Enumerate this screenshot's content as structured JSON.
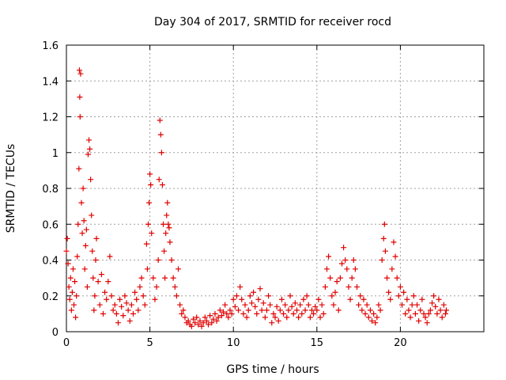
{
  "chart_data": {
    "type": "scatter",
    "title": "Day 304 of 2017, SRMTID for receiver rocd",
    "xlabel": "GPS time / hours",
    "ylabel": "SRMTID / TECUs",
    "xlim": [
      0,
      25
    ],
    "ylim": [
      0,
      1.6
    ],
    "x_ticks": [
      0,
      5,
      10,
      15,
      20
    ],
    "x_tick_labels": [
      "0",
      "5",
      "10",
      "15",
      "20"
    ],
    "y_ticks": [
      0,
      0.2,
      0.4,
      0.6,
      0.8,
      1,
      1.2,
      1.4,
      1.6
    ],
    "y_tick_labels": [
      "0",
      "0.2",
      "0.4",
      "0.6",
      "0.8",
      "1",
      "1.2",
      "1.4",
      "1.6"
    ],
    "grid": true,
    "marker": "plus",
    "color": "#e00000",
    "series": [
      {
        "name": "SRMTID",
        "points": [
          [
            0.0,
            0.45
          ],
          [
            0.05,
            0.52
          ],
          [
            0.1,
            0.38
          ],
          [
            0.15,
            0.25
          ],
          [
            0.2,
            0.18
          ],
          [
            0.25,
            0.3
          ],
          [
            0.3,
            0.12
          ],
          [
            0.35,
            0.22
          ],
          [
            0.4,
            0.35
          ],
          [
            0.45,
            0.15
          ],
          [
            0.5,
            0.28
          ],
          [
            0.55,
            0.08
          ],
          [
            0.6,
            0.2
          ],
          [
            0.65,
            0.42
          ],
          [
            0.7,
            0.6
          ],
          [
            0.75,
            0.91
          ],
          [
            0.78,
            1.46
          ],
          [
            0.8,
            1.31
          ],
          [
            0.82,
            1.2
          ],
          [
            0.85,
            1.44
          ],
          [
            0.9,
            0.72
          ],
          [
            0.95,
            0.55
          ],
          [
            1.0,
            0.8
          ],
          [
            1.05,
            0.62
          ],
          [
            1.1,
            0.35
          ],
          [
            1.15,
            0.48
          ],
          [
            1.2,
            0.57
          ],
          [
            1.25,
            0.25
          ],
          [
            1.3,
            0.99
          ],
          [
            1.35,
            1.07
          ],
          [
            1.4,
            1.02
          ],
          [
            1.45,
            0.85
          ],
          [
            1.5,
            0.65
          ],
          [
            1.55,
            0.45
          ],
          [
            1.6,
            0.3
          ],
          [
            1.65,
            0.12
          ],
          [
            1.7,
            0.2
          ],
          [
            1.75,
            0.4
          ],
          [
            1.8,
            0.52
          ],
          [
            1.9,
            0.28
          ],
          [
            2.0,
            0.15
          ],
          [
            2.1,
            0.32
          ],
          [
            2.2,
            0.1
          ],
          [
            2.3,
            0.22
          ],
          [
            2.4,
            0.18
          ],
          [
            2.5,
            0.28
          ],
          [
            2.6,
            0.42
          ],
          [
            2.7,
            0.2
          ],
          [
            2.8,
            0.12
          ],
          [
            2.9,
            0.15
          ],
          [
            3.0,
            0.1
          ],
          [
            3.1,
            0.05
          ],
          [
            3.2,
            0.18
          ],
          [
            3.3,
            0.14
          ],
          [
            3.4,
            0.09
          ],
          [
            3.5,
            0.2
          ],
          [
            3.6,
            0.16
          ],
          [
            3.7,
            0.12
          ],
          [
            3.8,
            0.06
          ],
          [
            3.9,
            0.15
          ],
          [
            4.0,
            0.1
          ],
          [
            4.1,
            0.22
          ],
          [
            4.2,
            0.18
          ],
          [
            4.3,
            0.12
          ],
          [
            4.4,
            0.25
          ],
          [
            4.5,
            0.3
          ],
          [
            4.6,
            0.2
          ],
          [
            4.7,
            0.15
          ],
          [
            4.8,
            0.49
          ],
          [
            4.85,
            0.35
          ],
          [
            4.9,
            0.6
          ],
          [
            4.95,
            0.72
          ],
          [
            5.0,
            0.88
          ],
          [
            5.05,
            0.82
          ],
          [
            5.1,
            0.55
          ],
          [
            5.2,
            0.3
          ],
          [
            5.3,
            0.18
          ],
          [
            5.4,
            0.25
          ],
          [
            5.5,
            0.4
          ],
          [
            5.55,
            0.85
          ],
          [
            5.6,
            1.18
          ],
          [
            5.65,
            1.1
          ],
          [
            5.7,
            1.0
          ],
          [
            5.75,
            0.82
          ],
          [
            5.8,
            0.6
          ],
          [
            5.85,
            0.45
          ],
          [
            5.9,
            0.3
          ],
          [
            5.95,
            0.55
          ],
          [
            6.0,
            0.65
          ],
          [
            6.05,
            0.72
          ],
          [
            6.1,
            0.6
          ],
          [
            6.15,
            0.58
          ],
          [
            6.2,
            0.5
          ],
          [
            6.3,
            0.4
          ],
          [
            6.4,
            0.3
          ],
          [
            6.5,
            0.25
          ],
          [
            6.6,
            0.2
          ],
          [
            6.7,
            0.35
          ],
          [
            6.8,
            0.15
          ],
          [
            6.9,
            0.1
          ],
          [
            7.0,
            0.12
          ],
          [
            7.1,
            0.08
          ],
          [
            7.2,
            0.05
          ],
          [
            7.3,
            0.06
          ],
          [
            7.4,
            0.04
          ],
          [
            7.5,
            0.03
          ],
          [
            7.6,
            0.07
          ],
          [
            7.7,
            0.05
          ],
          [
            7.8,
            0.08
          ],
          [
            7.9,
            0.04
          ],
          [
            8.0,
            0.06
          ],
          [
            8.1,
            0.03
          ],
          [
            8.2,
            0.05
          ],
          [
            8.3,
            0.08
          ],
          [
            8.4,
            0.06
          ],
          [
            8.5,
            0.04
          ],
          [
            8.6,
            0.09
          ],
          [
            8.7,
            0.05
          ],
          [
            8.8,
            0.07
          ],
          [
            8.9,
            0.1
          ],
          [
            9.0,
            0.06
          ],
          [
            9.1,
            0.08
          ],
          [
            9.2,
            0.12
          ],
          [
            9.3,
            0.09
          ],
          [
            9.4,
            0.11
          ],
          [
            9.5,
            0.15
          ],
          [
            9.6,
            0.1
          ],
          [
            9.7,
            0.08
          ],
          [
            9.8,
            0.12
          ],
          [
            9.9,
            0.1
          ],
          [
            10.0,
            0.18
          ],
          [
            10.1,
            0.14
          ],
          [
            10.2,
            0.2
          ],
          [
            10.3,
            0.12
          ],
          [
            10.4,
            0.25
          ],
          [
            10.5,
            0.18
          ],
          [
            10.6,
            0.1
          ],
          [
            10.7,
            0.15
          ],
          [
            10.8,
            0.08
          ],
          [
            10.9,
            0.12
          ],
          [
            11.0,
            0.2
          ],
          [
            11.1,
            0.16
          ],
          [
            11.2,
            0.22
          ],
          [
            11.3,
            0.14
          ],
          [
            11.4,
            0.1
          ],
          [
            11.5,
            0.18
          ],
          [
            11.6,
            0.24
          ],
          [
            11.7,
            0.12
          ],
          [
            11.8,
            0.16
          ],
          [
            11.9,
            0.08
          ],
          [
            12.0,
            0.12
          ],
          [
            12.1,
            0.2
          ],
          [
            12.2,
            0.15
          ],
          [
            12.3,
            0.05
          ],
          [
            12.4,
            0.1
          ],
          [
            12.5,
            0.08
          ],
          [
            12.6,
            0.14
          ],
          [
            12.7,
            0.06
          ],
          [
            12.8,
            0.12
          ],
          [
            12.9,
            0.18
          ],
          [
            13.0,
            0.1
          ],
          [
            13.1,
            0.15
          ],
          [
            13.2,
            0.08
          ],
          [
            13.3,
            0.12
          ],
          [
            13.4,
            0.2
          ],
          [
            13.5,
            0.14
          ],
          [
            13.6,
            0.1
          ],
          [
            13.7,
            0.16
          ],
          [
            13.8,
            0.12
          ],
          [
            13.9,
            0.08
          ],
          [
            14.0,
            0.15
          ],
          [
            14.1,
            0.1
          ],
          [
            14.2,
            0.18
          ],
          [
            14.3,
            0.12
          ],
          [
            14.4,
            0.2
          ],
          [
            14.5,
            0.15
          ],
          [
            14.6,
            0.08
          ],
          [
            14.7,
            0.12
          ],
          [
            14.8,
            0.1
          ],
          [
            14.9,
            0.14
          ],
          [
            15.0,
            0.12
          ],
          [
            15.1,
            0.18
          ],
          [
            15.2,
            0.08
          ],
          [
            15.3,
            0.15
          ],
          [
            15.4,
            0.1
          ],
          [
            15.5,
            0.25
          ],
          [
            15.6,
            0.35
          ],
          [
            15.7,
            0.42
          ],
          [
            15.8,
            0.3
          ],
          [
            15.9,
            0.2
          ],
          [
            16.0,
            0.15
          ],
          [
            16.1,
            0.22
          ],
          [
            16.2,
            0.28
          ],
          [
            16.3,
            0.12
          ],
          [
            16.4,
            0.3
          ],
          [
            16.5,
            0.38
          ],
          [
            16.6,
            0.47
          ],
          [
            16.7,
            0.4
          ],
          [
            16.8,
            0.35
          ],
          [
            16.9,
            0.25
          ],
          [
            17.0,
            0.18
          ],
          [
            17.1,
            0.3
          ],
          [
            17.2,
            0.4
          ],
          [
            17.3,
            0.35
          ],
          [
            17.4,
            0.25
          ],
          [
            17.5,
            0.15
          ],
          [
            17.6,
            0.2
          ],
          [
            17.7,
            0.12
          ],
          [
            17.8,
            0.18
          ],
          [
            17.9,
            0.1
          ],
          [
            18.0,
            0.15
          ],
          [
            18.1,
            0.08
          ],
          [
            18.2,
            0.12
          ],
          [
            18.3,
            0.06
          ],
          [
            18.4,
            0.1
          ],
          [
            18.5,
            0.05
          ],
          [
            18.6,
            0.08
          ],
          [
            18.7,
            0.15
          ],
          [
            18.8,
            0.12
          ],
          [
            18.9,
            0.4
          ],
          [
            19.0,
            0.52
          ],
          [
            19.05,
            0.6
          ],
          [
            19.1,
            0.45
          ],
          [
            19.2,
            0.3
          ],
          [
            19.3,
            0.22
          ],
          [
            19.4,
            0.18
          ],
          [
            19.5,
            0.35
          ],
          [
            19.6,
            0.5
          ],
          [
            19.7,
            0.42
          ],
          [
            19.8,
            0.3
          ],
          [
            19.9,
            0.2
          ],
          [
            20.0,
            0.25
          ],
          [
            20.1,
            0.15
          ],
          [
            20.2,
            0.22
          ],
          [
            20.3,
            0.1
          ],
          [
            20.4,
            0.18
          ],
          [
            20.5,
            0.12
          ],
          [
            20.6,
            0.08
          ],
          [
            20.7,
            0.15
          ],
          [
            20.8,
            0.2
          ],
          [
            20.9,
            0.1
          ],
          [
            21.0,
            0.15
          ],
          [
            21.1,
            0.06
          ],
          [
            21.2,
            0.12
          ],
          [
            21.3,
            0.18
          ],
          [
            21.4,
            0.1
          ],
          [
            21.5,
            0.08
          ],
          [
            21.6,
            0.05
          ],
          [
            21.7,
            0.1
          ],
          [
            21.8,
            0.12
          ],
          [
            21.9,
            0.16
          ],
          [
            22.0,
            0.2
          ],
          [
            22.1,
            0.14
          ],
          [
            22.2,
            0.1
          ],
          [
            22.3,
            0.18
          ],
          [
            22.4,
            0.12
          ],
          [
            22.5,
            0.08
          ],
          [
            22.6,
            0.15
          ],
          [
            22.7,
            0.1
          ],
          [
            22.75,
            0.12
          ]
        ]
      }
    ]
  }
}
